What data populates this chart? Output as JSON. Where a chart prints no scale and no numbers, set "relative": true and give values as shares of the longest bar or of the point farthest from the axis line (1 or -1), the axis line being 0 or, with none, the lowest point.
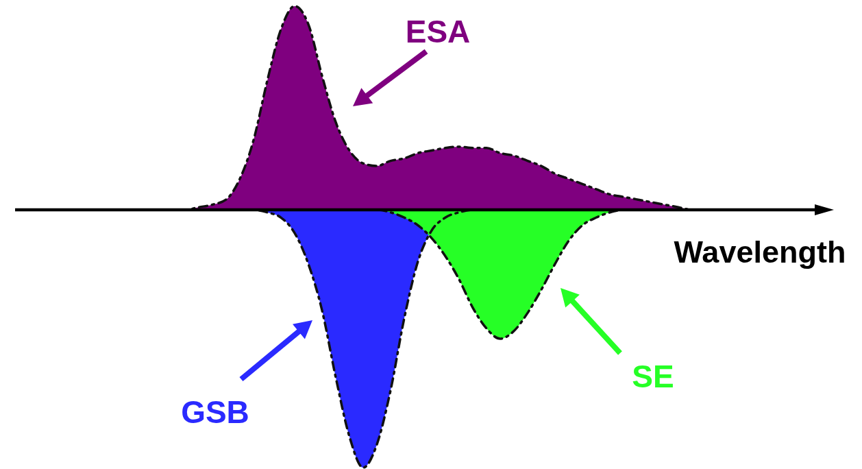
{
  "chart_data": {
    "type": "area",
    "relative": true,
    "xlabel": "Wavelength",
    "line_style": "dashed",
    "categories": [
      null,
      null,
      null,
      null,
      null,
      null,
      null,
      null,
      null,
      null,
      null,
      null,
      null,
      null,
      null,
      null,
      null,
      null,
      null,
      null,
      null,
      null,
      null,
      null,
      null,
      null,
      null,
      null,
      null,
      null,
      null,
      null,
      null,
      null,
      null,
      null,
      null,
      null,
      null,
      null,
      null,
      null,
      null,
      null,
      null,
      null,
      null,
      null,
      null,
      null,
      null,
      null,
      null,
      null,
      null,
      null,
      null,
      null,
      null
    ],
    "series": [
      {
        "name": "ESA",
        "color": "#7f007f",
        "values": [
          0,
          0,
          0,
          0,
          0,
          0,
          0,
          0,
          0,
          0,
          0,
          0,
          0,
          0.01,
          0.02,
          0.04,
          0.12,
          0.27,
          0.5,
          0.7,
          0.79,
          0.72,
          0.52,
          0.34,
          0.23,
          0.18,
          0.17,
          0.19,
          0.2,
          0.22,
          0.23,
          0.24,
          0.245,
          0.24,
          0.24,
          0.22,
          0.21,
          0.19,
          0.17,
          0.14,
          0.12,
          0.1,
          0.08,
          0.06,
          0.05,
          0.04,
          0.03,
          0.02,
          0.01,
          0,
          0,
          0,
          0,
          0,
          0,
          0,
          0,
          0,
          0
        ]
      },
      {
        "name": "GSB",
        "color": "#2a2aff",
        "values": [
          0,
          0,
          0,
          0,
          0,
          0,
          0,
          0,
          0,
          0,
          0,
          0,
          0,
          0,
          0,
          0,
          0,
          0,
          -0.01,
          -0.03,
          -0.09,
          -0.21,
          -0.39,
          -0.65,
          -0.88,
          -1,
          -0.91,
          -0.7,
          -0.42,
          -0.2,
          -0.08,
          -0.03,
          -0.01,
          0,
          0,
          0,
          0,
          0,
          0,
          0,
          0,
          0,
          0,
          0,
          0,
          0,
          0,
          0,
          0,
          0,
          0,
          0,
          0,
          0,
          0,
          0,
          0,
          0,
          0
        ]
      },
      {
        "name": "SE",
        "color": "#26ff26",
        "values": [
          0,
          0,
          0,
          0,
          0,
          0,
          0,
          0,
          0,
          0,
          0,
          0,
          0,
          0,
          0,
          0,
          0,
          0,
          0,
          0,
          0,
          0,
          0,
          0,
          0,
          0,
          0,
          -0.01,
          -0.03,
          -0.06,
          -0.11,
          -0.18,
          -0.27,
          -0.38,
          -0.46,
          -0.5,
          -0.47,
          -0.4,
          -0.31,
          -0.21,
          -0.12,
          -0.06,
          -0.03,
          -0.01,
          0,
          0,
          0,
          0,
          0,
          0,
          0,
          0,
          0,
          0,
          0,
          0,
          0,
          0,
          0
        ]
      }
    ]
  }
}
